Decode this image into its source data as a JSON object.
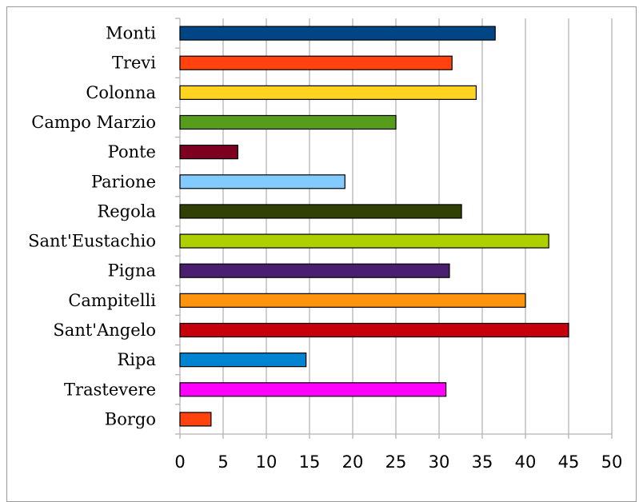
{
  "chart_data": {
    "type": "bar",
    "orientation": "horizontal",
    "title": "",
    "xlabel": "",
    "ylabel": "",
    "categories": [
      "Monti",
      "Trevi",
      "Colonna",
      "Campo Marzio",
      "Ponte",
      "Parione",
      "Regola",
      "Sant'Eustachio",
      "Pigna",
      "Campitelli",
      "Sant'Angelo",
      "Ripa",
      "Trastevere",
      "Borgo"
    ],
    "values": [
      36.5,
      31.5,
      34.3,
      25.0,
      6.7,
      19.1,
      32.6,
      42.7,
      31.2,
      40.0,
      45.0,
      14.6,
      30.8,
      3.6
    ],
    "colors": [
      "#004586",
      "#ff420e",
      "#ffd320",
      "#579d1c",
      "#7e0021",
      "#83caff",
      "#314004",
      "#aecf00",
      "#4b1f6f",
      "#ff950e",
      "#c5000b",
      "#0084d1",
      "#ff00ff",
      "#ff420e"
    ],
    "xlim": [
      0,
      50
    ],
    "xticks": [
      "0",
      "5",
      "10",
      "15",
      "20",
      "25",
      "30",
      "35",
      "40",
      "45",
      "50"
    ],
    "grid": "vertical",
    "legend": "none"
  }
}
